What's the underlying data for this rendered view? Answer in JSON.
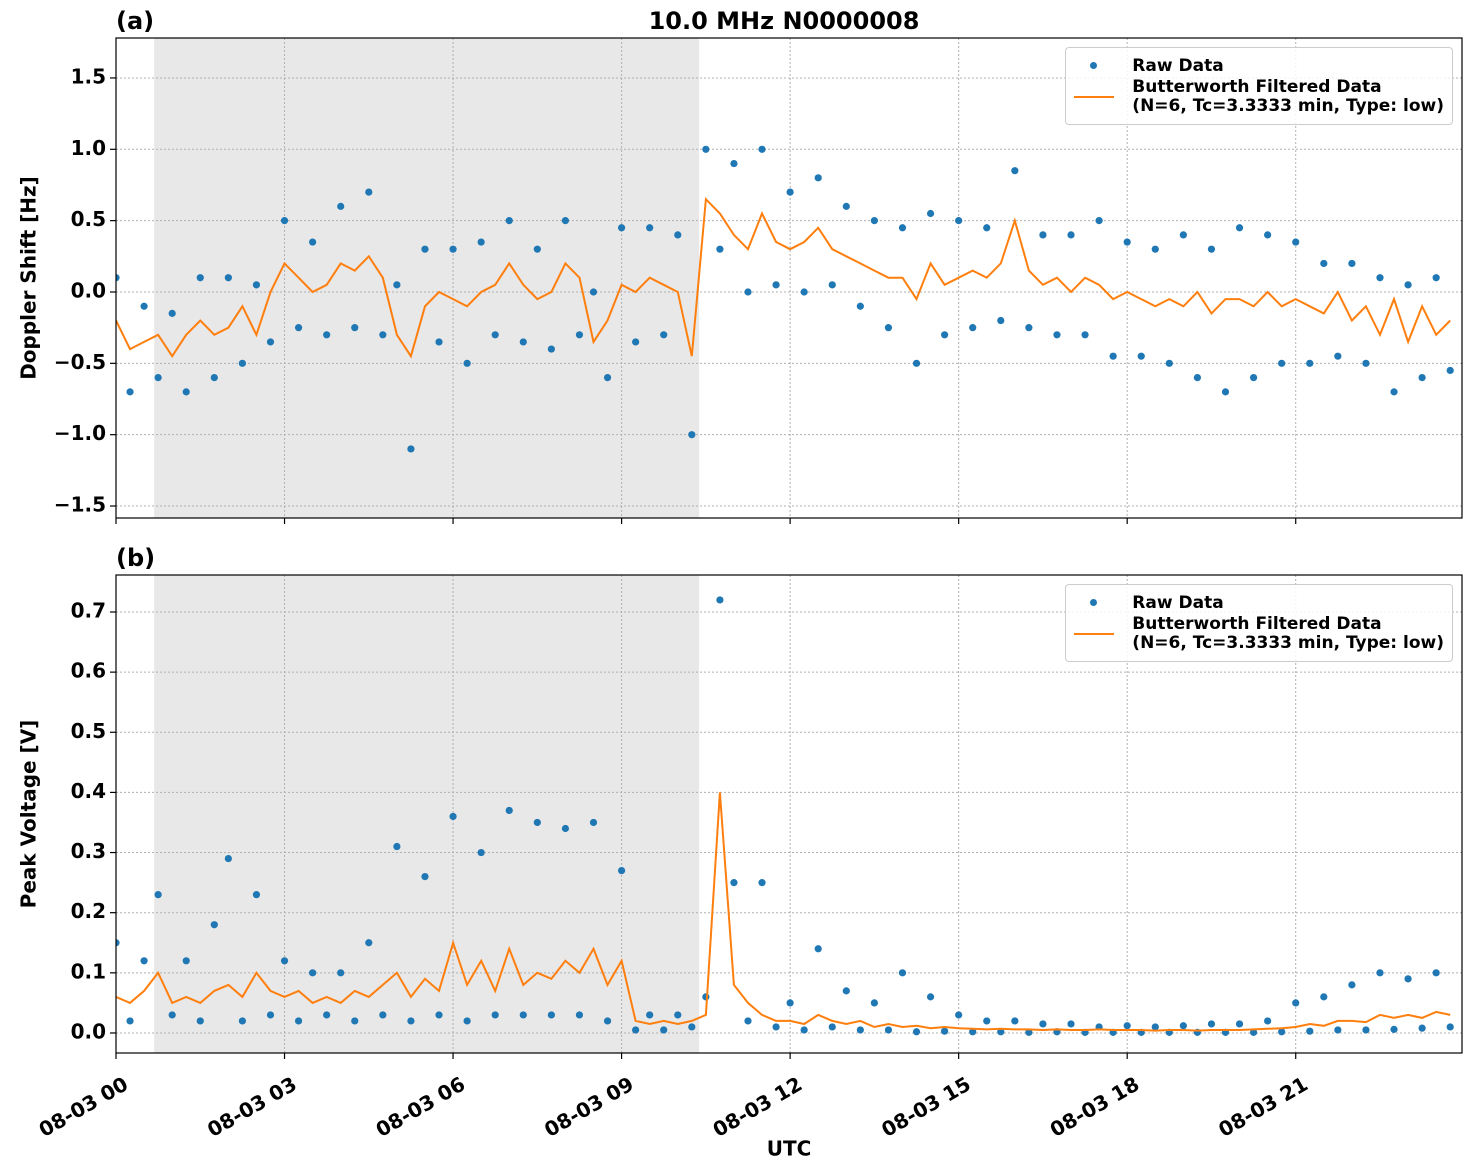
{
  "chart_data": [
    {
      "type": "scatter-line",
      "title": "10.0 MHz N0000008",
      "panel_label": "(a)",
      "ylabel": "Doppler Shift [Hz]",
      "legend": "upper right",
      "grid": true,
      "shade": [
        0.68,
        10.38
      ],
      "xlim": [
        0,
        23.96
      ],
      "xticks": [
        {
          "value": 0,
          "label": "08-03 00"
        },
        {
          "value": 3,
          "label": "08-03 03"
        },
        {
          "value": 6,
          "label": "08-03 06"
        },
        {
          "value": 9,
          "label": "08-03 09"
        },
        {
          "value": 12,
          "label": "08-03 12"
        },
        {
          "value": 15,
          "label": "08-03 15"
        },
        {
          "value": 18,
          "label": "08-03 18"
        },
        {
          "value": 21,
          "label": "08-03 21"
        }
      ],
      "ylim": [
        -1.584,
        1.78
      ],
      "yticks": [
        {
          "value": -1.5,
          "label": "−1.5"
        },
        {
          "value": -1.0,
          "label": "−1.0"
        },
        {
          "value": -0.5,
          "label": "−0.5"
        },
        {
          "value": 0,
          "label": "0.0"
        },
        {
          "value": 0.5,
          "label": "0.5"
        },
        {
          "value": 1.0,
          "label": "1.0"
        },
        {
          "value": 1.5,
          "label": "1.5"
        }
      ],
      "x": [
        0,
        0.25,
        0.5,
        0.75,
        1,
        1.25,
        1.5,
        1.75,
        2,
        2.25,
        2.5,
        2.75,
        3,
        3.25,
        3.5,
        3.75,
        4,
        4.25,
        4.5,
        4.75,
        5,
        5.25,
        5.5,
        5.75,
        6,
        6.25,
        6.5,
        6.75,
        7,
        7.25,
        7.5,
        7.75,
        8,
        8.25,
        8.5,
        8.75,
        9,
        9.25,
        9.5,
        9.75,
        10,
        10.25,
        10.5,
        10.75,
        11,
        11.25,
        11.5,
        11.75,
        12,
        12.25,
        12.5,
        12.75,
        13,
        13.25,
        13.5,
        13.75,
        14,
        14.25,
        14.5,
        14.75,
        15,
        15.25,
        15.5,
        15.75,
        16,
        16.25,
        16.5,
        16.75,
        17,
        17.25,
        17.5,
        17.75,
        18,
        18.25,
        18.5,
        18.75,
        19,
        19.25,
        19.5,
        19.75,
        20,
        20.25,
        20.5,
        20.75,
        21,
        21.25,
        21.5,
        21.75,
        22,
        22.25,
        22.5,
        22.75,
        23,
        23.25,
        23.5,
        23.75
      ],
      "series": [
        {
          "name": "Raw Data",
          "color": "#1f77b4",
          "mode": "markers",
          "values": [
            0.1,
            -0.7,
            -0.1,
            -0.6,
            -0.15,
            -0.7,
            0.1,
            -0.6,
            0.1,
            -0.5,
            0.05,
            -0.35,
            0.5,
            -0.25,
            0.35,
            -0.3,
            0.6,
            -0.25,
            0.7,
            -0.3,
            0.05,
            -1.1,
            0.3,
            -0.35,
            0.3,
            -0.5,
            0.35,
            -0.3,
            0.5,
            -0.35,
            0.3,
            -0.4,
            0.5,
            -0.3,
            0.0,
            -0.6,
            0.45,
            -0.35,
            0.45,
            -0.3,
            0.4,
            -1.0,
            1.0,
            0.3,
            0.9,
            0.0,
            1.0,
            0.05,
            0.7,
            0.0,
            0.8,
            0.05,
            0.6,
            -0.1,
            0.5,
            -0.25,
            0.45,
            -0.5,
            0.55,
            -0.3,
            0.5,
            -0.25,
            0.45,
            -0.2,
            0.85,
            -0.25,
            0.4,
            -0.3,
            0.4,
            -0.3,
            0.5,
            -0.45,
            0.35,
            -0.45,
            0.3,
            -0.5,
            0.4,
            -0.6,
            0.3,
            -0.7,
            0.45,
            -0.6,
            0.4,
            -0.5,
            0.35,
            -0.5,
            0.2,
            -0.45,
            0.2,
            -0.5,
            0.1,
            -0.7,
            0.05,
            -0.6,
            0.1,
            -0.55
          ]
        },
        {
          "name": "Butterworth Filtered Data\n(N=6, Tc=3.3333 min, Type: low)",
          "color": "#ff7f0e",
          "mode": "line",
          "values": [
            -0.2,
            -0.4,
            -0.35,
            -0.3,
            -0.45,
            -0.3,
            -0.2,
            -0.3,
            -0.25,
            -0.1,
            -0.3,
            0.0,
            0.2,
            0.1,
            0.0,
            0.05,
            0.2,
            0.15,
            0.25,
            0.1,
            -0.3,
            -0.45,
            -0.1,
            0.0,
            -0.05,
            -0.1,
            0.0,
            0.05,
            0.2,
            0.05,
            -0.05,
            0.0,
            0.2,
            0.1,
            -0.35,
            -0.2,
            0.05,
            0.0,
            0.1,
            0.05,
            0.0,
            -0.45,
            0.65,
            0.55,
            0.4,
            0.3,
            0.55,
            0.35,
            0.3,
            0.35,
            0.45,
            0.3,
            0.25,
            0.2,
            0.15,
            0.1,
            0.1,
            -0.05,
            0.2,
            0.05,
            0.1,
            0.15,
            0.1,
            0.2,
            0.5,
            0.15,
            0.05,
            0.1,
            0.0,
            0.1,
            0.05,
            -0.05,
            0.0,
            -0.05,
            -0.1,
            -0.05,
            -0.1,
            0.0,
            -0.15,
            -0.05,
            -0.05,
            -0.1,
            0.0,
            -0.1,
            -0.05,
            -0.1,
            -0.15,
            0.0,
            -0.2,
            -0.1,
            -0.3,
            -0.05,
            -0.35,
            -0.1,
            -0.3,
            -0.2
          ]
        }
      ]
    },
    {
      "type": "scatter-line",
      "panel_label": "(b)",
      "ylabel": "Peak Voltage [V]",
      "xlabel": "UTC",
      "legend": "upper right",
      "grid": true,
      "shade": [
        0.68,
        10.38
      ],
      "xlim": [
        0,
        23.96
      ],
      "xticks": [
        {
          "value": 0,
          "label": "08-03 00"
        },
        {
          "value": 3,
          "label": "08-03 03"
        },
        {
          "value": 6,
          "label": "08-03 06"
        },
        {
          "value": 9,
          "label": "08-03 09"
        },
        {
          "value": 12,
          "label": "08-03 12"
        },
        {
          "value": 15,
          "label": "08-03 15"
        },
        {
          "value": 18,
          "label": "08-03 18"
        },
        {
          "value": 21,
          "label": "08-03 21"
        }
      ],
      "ylim": [
        -0.0333,
        0.7615
      ],
      "yticks": [
        {
          "value": 0,
          "label": "0.0"
        },
        0.1,
        0.2,
        0.3,
        0.4,
        0.5,
        0.6,
        0.7
      ],
      "x": [
        0,
        0.25,
        0.5,
        0.75,
        1,
        1.25,
        1.5,
        1.75,
        2,
        2.25,
        2.5,
        2.75,
        3,
        3.25,
        3.5,
        3.75,
        4,
        4.25,
        4.5,
        4.75,
        5,
        5.25,
        5.5,
        5.75,
        6,
        6.25,
        6.5,
        6.75,
        7,
        7.25,
        7.5,
        7.75,
        8,
        8.25,
        8.5,
        8.75,
        9,
        9.25,
        9.5,
        9.75,
        10,
        10.25,
        10.5,
        10.75,
        11,
        11.25,
        11.5,
        11.75,
        12,
        12.25,
        12.5,
        12.75,
        13,
        13.25,
        13.5,
        13.75,
        14,
        14.25,
        14.5,
        14.75,
        15,
        15.25,
        15.5,
        15.75,
        16,
        16.25,
        16.5,
        16.75,
        17,
        17.25,
        17.5,
        17.75,
        18,
        18.25,
        18.5,
        18.75,
        19,
        19.25,
        19.5,
        19.75,
        20,
        20.25,
        20.5,
        20.75,
        21,
        21.25,
        21.5,
        21.75,
        22,
        22.25,
        22.5,
        22.75,
        23,
        23.25,
        23.5,
        23.75
      ],
      "series": [
        {
          "name": "Raw Data",
          "color": "#1f77b4",
          "mode": "markers",
          "values": [
            0.15,
            0.02,
            0.12,
            0.23,
            0.03,
            0.12,
            0.02,
            0.18,
            0.29,
            0.02,
            0.23,
            0.03,
            0.12,
            0.02,
            0.1,
            0.03,
            0.1,
            0.02,
            0.15,
            0.03,
            0.31,
            0.02,
            0.26,
            0.03,
            0.36,
            0.02,
            0.3,
            0.03,
            0.37,
            0.03,
            0.35,
            0.03,
            0.34,
            0.03,
            0.35,
            0.02,
            0.27,
            0.005,
            0.03,
            0.005,
            0.03,
            0.01,
            0.06,
            0.72,
            0.25,
            0.02,
            0.25,
            0.01,
            0.05,
            0.005,
            0.14,
            0.01,
            0.07,
            0.005,
            0.05,
            0.005,
            0.1,
            0.002,
            0.06,
            0.003,
            0.03,
            0.002,
            0.02,
            0.002,
            0.02,
            0.001,
            0.015,
            0.002,
            0.015,
            0.001,
            0.01,
            0.001,
            0.012,
            0.001,
            0.01,
            0.001,
            0.012,
            0.001,
            0.015,
            0.001,
            0.015,
            0.001,
            0.02,
            0.002,
            0.05,
            0.003,
            0.06,
            0.005,
            0.08,
            0.005,
            0.1,
            0.006,
            0.09,
            0.008,
            0.1,
            0.01
          ]
        },
        {
          "name": "Butterworth Filtered Data\n(N=6, Tc=3.3333 min, Type: low)",
          "color": "#ff7f0e",
          "mode": "line",
          "values": [
            0.06,
            0.05,
            0.07,
            0.1,
            0.05,
            0.06,
            0.05,
            0.07,
            0.08,
            0.06,
            0.1,
            0.07,
            0.06,
            0.07,
            0.05,
            0.06,
            0.05,
            0.07,
            0.06,
            0.08,
            0.1,
            0.06,
            0.09,
            0.07,
            0.15,
            0.08,
            0.12,
            0.07,
            0.14,
            0.08,
            0.1,
            0.09,
            0.12,
            0.1,
            0.14,
            0.08,
            0.12,
            0.02,
            0.015,
            0.02,
            0.015,
            0.02,
            0.03,
            0.4,
            0.08,
            0.05,
            0.03,
            0.02,
            0.02,
            0.015,
            0.03,
            0.02,
            0.015,
            0.02,
            0.01,
            0.015,
            0.01,
            0.012,
            0.008,
            0.01,
            0.008,
            0.007,
            0.006,
            0.007,
            0.006,
            0.006,
            0.005,
            0.006,
            0.005,
            0.005,
            0.006,
            0.005,
            0.005,
            0.005,
            0.004,
            0.005,
            0.005,
            0.004,
            0.005,
            0.005,
            0.005,
            0.006,
            0.007,
            0.008,
            0.01,
            0.015,
            0.012,
            0.02,
            0.02,
            0.018,
            0.03,
            0.025,
            0.03,
            0.025,
            0.035,
            0.03
          ]
        }
      ]
    }
  ]
}
